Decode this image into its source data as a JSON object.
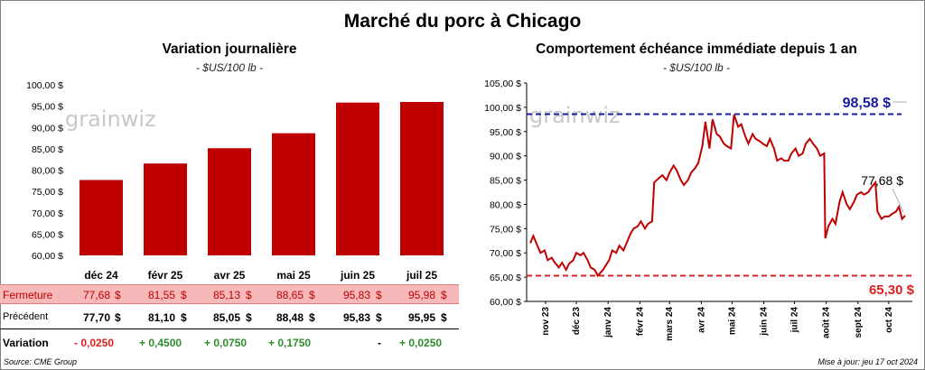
{
  "title": "Marché du porc à Chicago",
  "left": {
    "title": "Variation journalière",
    "unit": "- $US/100 lb -"
  },
  "right": {
    "title": "Comportement échéance immédiate depuis 1 an",
    "unit": "- $US/100 lb -",
    "max_label": "98,58 $",
    "last_label": "77,68 $",
    "min_label": "65,30 $"
  },
  "table": {
    "rows": [
      {
        "label": "Fermeture",
        "values": [
          "77,68",
          "81,55",
          "85,13",
          "88,65",
          "95,83",
          "95,98"
        ],
        "unit": "$"
      },
      {
        "label": "Précédent",
        "values": [
          "77,70",
          "81,10",
          "85,05",
          "88,48",
          "95,83",
          "95,95"
        ],
        "unit": "$"
      },
      {
        "label": "Variation",
        "values": [
          "- 0,0250",
          "+ 0,4500",
          "+ 0,0750",
          "+ 0,1750",
          "-",
          "+ 0,0250"
        ]
      }
    ]
  },
  "footer": {
    "source": "Source: CME Group",
    "updated": "Mise à jour: jeu 17 oct 2024"
  },
  "watermark": "grainwiz",
  "colors": {
    "bar": "#c00000",
    "line": "#c00000",
    "max_line": "#1a1aa6",
    "min_line": "#e02020",
    "positive": "#2e8b2e",
    "negative": "#e02020"
  },
  "chart_data": [
    {
      "type": "bar",
      "title": "Variation journalière",
      "categories": [
        "déc 24",
        "févr 25",
        "avr 25",
        "mai 25",
        "juin 25",
        "juil 25"
      ],
      "values": [
        77.68,
        81.55,
        85.13,
        88.65,
        95.83,
        95.98
      ],
      "ylim": [
        60,
        100
      ],
      "yticks": [
        "60,00 $",
        "65,00 $",
        "70,00 $",
        "75,00 $",
        "80,00 $",
        "85,00 $",
        "90,00 $",
        "95,00 $",
        "100,00 $"
      ],
      "grid": false
    },
    {
      "type": "line",
      "title": "Comportement échéance immédiate depuis 1 an",
      "ylim": [
        60,
        105
      ],
      "yticks": [
        "60,00 $",
        "65,00 $",
        "70,00 $",
        "75,00 $",
        "80,00 $",
        "85,00 $",
        "90,00 $",
        "95,00 $",
        "100,00 $",
        "105,00 $"
      ],
      "xticks": [
        "nov 23",
        "déc 23",
        "janv 24",
        "févr 24",
        "mars 24",
        "avr 24",
        "mai 24",
        "juin 24",
        "juil 24",
        "août 24",
        "sept 24",
        "oct 24"
      ],
      "reference_lines": [
        {
          "value": 98.58,
          "label": "98,58 $"
        },
        {
          "value": 65.3,
          "label": "65,30 $"
        }
      ],
      "last_value": 77.68,
      "grid": false,
      "points": [
        [
          "2023-10-17",
          72.0
        ],
        [
          "2023-10-20",
          73.5
        ],
        [
          "2023-10-24",
          71.5
        ],
        [
          "2023-10-27",
          70.0
        ],
        [
          "2023-10-31",
          70.5
        ],
        [
          "2023-11-03",
          68.5
        ],
        [
          "2023-11-07",
          69.0
        ],
        [
          "2023-11-10",
          68.0
        ],
        [
          "2023-11-14",
          67.0
        ],
        [
          "2023-11-17",
          68.0
        ],
        [
          "2023-11-21",
          66.5
        ],
        [
          "2023-11-24",
          67.8
        ],
        [
          "2023-11-28",
          68.5
        ],
        [
          "2023-12-01",
          70.0
        ],
        [
          "2023-12-05",
          69.5
        ],
        [
          "2023-12-08",
          70.0
        ],
        [
          "2023-12-12",
          68.5
        ],
        [
          "2023-12-15",
          67.0
        ],
        [
          "2023-12-19",
          66.5
        ],
        [
          "2023-12-22",
          65.3
        ],
        [
          "2023-12-27",
          66.5
        ],
        [
          "2024-01-02",
          68.5
        ],
        [
          "2024-01-05",
          70.5
        ],
        [
          "2024-01-09",
          70.0
        ],
        [
          "2024-01-12",
          71.5
        ],
        [
          "2024-01-16",
          70.5
        ],
        [
          "2024-01-19",
          72.0
        ],
        [
          "2024-01-23",
          74.0
        ],
        [
          "2024-01-26",
          75.0
        ],
        [
          "2024-01-30",
          75.5
        ],
        [
          "2024-02-02",
          76.5
        ],
        [
          "2024-02-06",
          75.0
        ],
        [
          "2024-02-09",
          76.0
        ],
        [
          "2024-02-13",
          76.5
        ],
        [
          "2024-02-15",
          84.5
        ],
        [
          "2024-02-20",
          85.5
        ],
        [
          "2024-02-23",
          86.0
        ],
        [
          "2024-02-27",
          85.0
        ],
        [
          "2024-03-01",
          86.5
        ],
        [
          "2024-03-05",
          88.0
        ],
        [
          "2024-03-08",
          87.0
        ],
        [
          "2024-03-12",
          85.0
        ],
        [
          "2024-03-15",
          84.0
        ],
        [
          "2024-03-19",
          85.0
        ],
        [
          "2024-03-22",
          86.5
        ],
        [
          "2024-03-26",
          87.5
        ],
        [
          "2024-03-29",
          88.5
        ],
        [
          "2024-04-02",
          92.0
        ],
        [
          "2024-04-05",
          97.0
        ],
        [
          "2024-04-09",
          91.5
        ],
        [
          "2024-04-12",
          97.5
        ],
        [
          "2024-04-16",
          94.5
        ],
        [
          "2024-04-19",
          94.0
        ],
        [
          "2024-04-23",
          92.5
        ],
        [
          "2024-04-26",
          92.0
        ],
        [
          "2024-04-30",
          91.5
        ],
        [
          "2024-05-03",
          98.5
        ],
        [
          "2024-05-07",
          96.0
        ],
        [
          "2024-05-10",
          96.5
        ],
        [
          "2024-05-14",
          94.0
        ],
        [
          "2024-05-17",
          92.5
        ],
        [
          "2024-05-21",
          94.5
        ],
        [
          "2024-05-24",
          93.5
        ],
        [
          "2024-05-28",
          93.0
        ],
        [
          "2024-05-31",
          92.5
        ],
        [
          "2024-06-04",
          92.0
        ],
        [
          "2024-06-07",
          93.5
        ],
        [
          "2024-06-11",
          91.5
        ],
        [
          "2024-06-14",
          89.0
        ],
        [
          "2024-06-18",
          89.5
        ],
        [
          "2024-06-21",
          89.0
        ],
        [
          "2024-06-25",
          89.0
        ],
        [
          "2024-06-28",
          90.5
        ],
        [
          "2024-07-02",
          91.5
        ],
        [
          "2024-07-05",
          90.0
        ],
        [
          "2024-07-09",
          90.5
        ],
        [
          "2024-07-12",
          92.5
        ],
        [
          "2024-07-16",
          93.5
        ],
        [
          "2024-07-19",
          92.5
        ],
        [
          "2024-07-23",
          91.5
        ],
        [
          "2024-07-26",
          90.0
        ],
        [
          "2024-07-30",
          90.5
        ],
        [
          "2024-07-31",
          73.0
        ],
        [
          "2024-08-03",
          75.5
        ],
        [
          "2024-08-07",
          77.0
        ],
        [
          "2024-08-10",
          76.0
        ],
        [
          "2024-08-14",
          80.5
        ],
        [
          "2024-08-17",
          82.5
        ],
        [
          "2024-08-21",
          80.0
        ],
        [
          "2024-08-24",
          79.0
        ],
        [
          "2024-08-28",
          80.5
        ],
        [
          "2024-08-31",
          82.0
        ],
        [
          "2024-09-04",
          82.5
        ],
        [
          "2024-09-07",
          82.0
        ],
        [
          "2024-09-11",
          82.5
        ],
        [
          "2024-09-14",
          83.5
        ],
        [
          "2024-09-18",
          84.5
        ],
        [
          "2024-09-20",
          78.5
        ],
        [
          "2024-09-24",
          77.0
        ],
        [
          "2024-09-27",
          77.5
        ],
        [
          "2024-10-01",
          77.5
        ],
        [
          "2024-10-04",
          78.0
        ],
        [
          "2024-10-08",
          78.5
        ],
        [
          "2024-10-11",
          79.5
        ],
        [
          "2024-10-14",
          77.0
        ],
        [
          "2024-10-17",
          77.68
        ]
      ]
    }
  ]
}
